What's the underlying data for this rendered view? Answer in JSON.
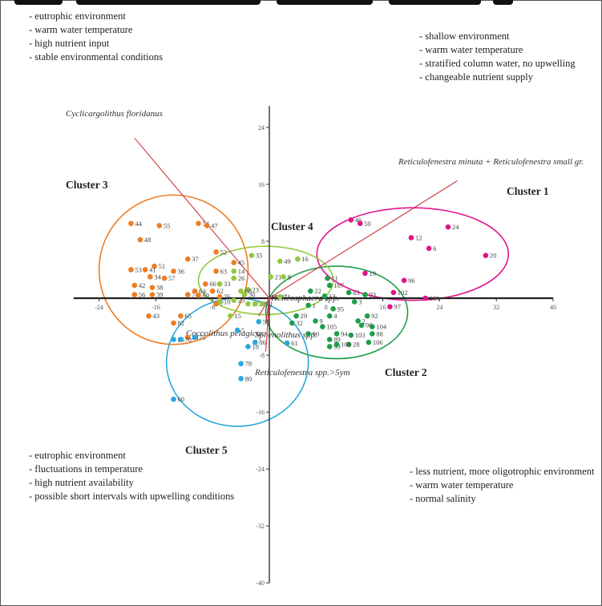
{
  "chart_data": {
    "type": "scatter",
    "title": "",
    "xlabel": "",
    "ylabel": "",
    "xlim": [
      -26,
      40
    ],
    "ylim": [
      -40,
      27
    ],
    "x_ticks": [
      -24,
      -16,
      -8,
      0,
      8,
      16,
      24,
      32,
      40
    ],
    "y_ticks": [
      24,
      16,
      8,
      -8,
      -16,
      -24,
      -32,
      -40
    ],
    "series": [
      {
        "name": "Cluster 1",
        "color": "#e0158a",
        "points": [
          {
            "label": "46",
            "x": 11.5,
            "y": 11.0
          },
          {
            "label": "50",
            "x": 12.8,
            "y": 10.5
          },
          {
            "label": "24",
            "x": 25.2,
            "y": 10.0
          },
          {
            "label": "12",
            "x": 20.0,
            "y": 8.5
          },
          {
            "label": "6",
            "x": 22.5,
            "y": 7.0
          },
          {
            "label": "20",
            "x": 30.5,
            "y": 6.0
          },
          {
            "label": "19",
            "x": 13.5,
            "y": 3.5
          },
          {
            "label": "96",
            "x": 19.0,
            "y": 2.5
          },
          {
            "label": "102",
            "x": 17.5,
            "y": 0.8
          },
          {
            "label": "101",
            "x": 22.0,
            "y": 0.0
          },
          {
            "label": "97",
            "x": 17.0,
            "y": -1.2
          }
        ]
      },
      {
        "name": "Cluster 2",
        "color": "#1f9e4a",
        "points": [
          {
            "label": "11",
            "x": 8.2,
            "y": 2.8
          },
          {
            "label": "107",
            "x": 8.5,
            "y": 1.8
          },
          {
            "label": "22",
            "x": 5.8,
            "y": 1.0
          },
          {
            "label": "83",
            "x": 11.2,
            "y": 0.8
          },
          {
            "label": "93",
            "x": 13.5,
            "y": 0.5
          },
          {
            "label": "13",
            "x": 7.8,
            "y": 0.3
          },
          {
            "label": "3",
            "x": 12.0,
            "y": -0.5
          },
          {
            "label": "1",
            "x": 5.5,
            "y": -1.0
          },
          {
            "label": "95",
            "x": 9.0,
            "y": -1.5
          },
          {
            "label": "29",
            "x": 3.8,
            "y": -2.5
          },
          {
            "label": "4",
            "x": 8.5,
            "y": -2.5
          },
          {
            "label": "92",
            "x": 13.8,
            "y": -2.5
          },
          {
            "label": "32",
            "x": 3.2,
            "y": -3.5
          },
          {
            "label": "9",
            "x": 6.5,
            "y": -3.2
          },
          {
            "label": "2",
            "x": 12.5,
            "y": -3.2
          },
          {
            "label": "98",
            "x": 13.0,
            "y": -3.8
          },
          {
            "label": "105",
            "x": 7.5,
            "y": -4.0
          },
          {
            "label": "104",
            "x": 14.5,
            "y": -4.0
          },
          {
            "label": "90",
            "x": 5.5,
            "y": -5.0
          },
          {
            "label": "94",
            "x": 9.5,
            "y": -5.0
          },
          {
            "label": "103",
            "x": 11.5,
            "y": -5.2
          },
          {
            "label": "88",
            "x": 14.5,
            "y": -5.0
          },
          {
            "label": "89",
            "x": 8.5,
            "y": -5.8
          },
          {
            "label": "28",
            "x": 11.2,
            "y": -6.5
          },
          {
            "label": "106",
            "x": 14.0,
            "y": -6.2
          },
          {
            "label": "99",
            "x": 8.5,
            "y": -6.8
          },
          {
            "label": "100",
            "x": 9.5,
            "y": -6.5
          }
        ]
      },
      {
        "name": "Cluster 3",
        "color": "#ee7d24",
        "points": [
          {
            "label": "44",
            "x": -19.5,
            "y": 10.5
          },
          {
            "label": "55",
            "x": -15.5,
            "y": 10.2
          },
          {
            "label": "54",
            "x": -10.0,
            "y": 10.5
          },
          {
            "label": "47",
            "x": -8.8,
            "y": 10.2
          },
          {
            "label": "48",
            "x": -18.2,
            "y": 8.2
          },
          {
            "label": "52",
            "x": -7.5,
            "y": 6.5
          },
          {
            "label": "37",
            "x": -11.5,
            "y": 5.5
          },
          {
            "label": "51",
            "x": -16.2,
            "y": 4.5
          },
          {
            "label": "45",
            "x": -5.0,
            "y": 5.0
          },
          {
            "label": "53",
            "x": -19.5,
            "y": 4.0
          },
          {
            "label": "41",
            "x": -17.5,
            "y": 4.0
          },
          {
            "label": "36",
            "x": -13.5,
            "y": 3.8
          },
          {
            "label": "63",
            "x": -7.5,
            "y": 3.8
          },
          {
            "label": "34",
            "x": -16.8,
            "y": 3.0
          },
          {
            "label": "57",
            "x": -14.8,
            "y": 2.8
          },
          {
            "label": "42",
            "x": -19.0,
            "y": 1.8
          },
          {
            "label": "38",
            "x": -16.5,
            "y": 1.5
          },
          {
            "label": "66",
            "x": -9.0,
            "y": 2.0
          },
          {
            "label": "56",
            "x": -19.0,
            "y": 0.5
          },
          {
            "label": "39",
            "x": -16.5,
            "y": 0.5
          },
          {
            "label": "74",
            "x": -11.5,
            "y": 0.5
          },
          {
            "label": "64",
            "x": -10.5,
            "y": 1.0
          },
          {
            "label": "69",
            "x": -10.0,
            "y": 0.4
          },
          {
            "label": "62",
            "x": -8.0,
            "y": 1.0
          },
          {
            "label": "76",
            "x": -7.0,
            "y": 0.2
          },
          {
            "label": "7",
            "x": -7.5,
            "y": -0.8
          },
          {
            "label": "65",
            "x": -12.5,
            "y": -2.5
          },
          {
            "label": "43",
            "x": -17.0,
            "y": -2.5
          },
          {
            "label": "82",
            "x": -13.5,
            "y": -3.5
          },
          {
            "label": "84",
            "x": -11.5,
            "y": -5.5
          }
        ]
      },
      {
        "name": "Cluster 4",
        "color": "#93c83e",
        "points": [
          {
            "label": "35",
            "x": -2.5,
            "y": 6.0
          },
          {
            "label": "49",
            "x": 1.5,
            "y": 5.2
          },
          {
            "label": "16",
            "x": 4.0,
            "y": 5.5
          },
          {
            "label": "14",
            "x": -5.0,
            "y": 3.8
          },
          {
            "label": "21",
            "x": 0.2,
            "y": 3.0
          },
          {
            "label": "8",
            "x": 2.0,
            "y": 3.0
          },
          {
            "label": "26",
            "x": -5.0,
            "y": 2.8
          },
          {
            "label": "33",
            "x": -7.0,
            "y": 2.0
          },
          {
            "label": "23",
            "x": -3.0,
            "y": 1.2
          },
          {
            "label": "68",
            "x": -4.0,
            "y": 1.0
          },
          {
            "label": "30",
            "x": -3.5,
            "y": 0.5
          },
          {
            "label": "10",
            "x": -7.0,
            "y": -0.5
          },
          {
            "label": "25",
            "x": -5.0,
            "y": -0.3
          },
          {
            "label": "17",
            "x": -3.0,
            "y": -0.8
          },
          {
            "label": "27",
            "x": -2.0,
            "y": -0.8
          },
          {
            "label": "31",
            "x": -1.0,
            "y": -0.8
          },
          {
            "label": "15",
            "x": -5.5,
            "y": -2.5
          },
          {
            "label": "71",
            "x": 1.5,
            "y": 0.2
          }
        ]
      },
      {
        "name": "Cluster 5",
        "color": "#2aa7de",
        "points": [
          {
            "label": "58",
            "x": -1.5,
            "y": -3.3
          },
          {
            "label": "5",
            "x": -4.5,
            "y": -4.5
          },
          {
            "label": "85",
            "x": -13.5,
            "y": -5.8
          },
          {
            "label": "70",
            "x": -12.5,
            "y": -5.8
          },
          {
            "label": "75",
            "x": -10.5,
            "y": -5.5
          },
          {
            "label": "86",
            "x": -2.0,
            "y": -6.2
          },
          {
            "label": "18",
            "x": -3.0,
            "y": -6.8
          },
          {
            "label": "61",
            "x": 2.5,
            "y": -6.3
          },
          {
            "label": "78",
            "x": -4.0,
            "y": -9.2
          },
          {
            "label": "80",
            "x": -4.0,
            "y": -11.3
          },
          {
            "label": "60",
            "x": -13.5,
            "y": -14.2
          }
        ]
      }
    ],
    "vectors": [
      {
        "label": "Cyclicargolithus floridanus",
        "x": -19.0,
        "y": 22.5
      },
      {
        "label": "Reticulofenestra minuta + Reticulofenestra small gr.",
        "x": 26.5,
        "y": 16.5
      },
      {
        "label": "Helicosphaera spp.",
        "x": 1.0,
        "y": 0.3
      },
      {
        "label": "Coccolithus pelagicus",
        "x": -1.5,
        "y": -2.5
      },
      {
        "label": "Sphenolithus spp.",
        "x": -0.5,
        "y": -3.5
      },
      {
        "label": "Reticulofenestra spp.>5ym",
        "x": -0.5,
        "y": -7.5
      }
    ],
    "clusters": [
      {
        "name": "Cluster 1",
        "color": "#e0158a",
        "cx": 20.2,
        "cy": 6.2,
        "rx": 13.5,
        "ry": 6.5
      },
      {
        "name": "Cluster 2",
        "color": "#1f9e4a",
        "cx": 9.5,
        "cy": -2.0,
        "rx": 10.0,
        "ry": 6.5
      },
      {
        "name": "Cluster 3",
        "color": "#ee7d24",
        "cx": -13.5,
        "cy": 4.0,
        "rx": 10.5,
        "ry": 10.5
      },
      {
        "name": "Cluster 4",
        "color": "#93c83e",
        "cx": -0.5,
        "cy": 2.5,
        "rx": 9.5,
        "ry": 4.8
      },
      {
        "name": "Cluster 5",
        "color": "#2aa7de",
        "cx": -4.5,
        "cy": -9.0,
        "rx": 10.0,
        "ry": 9.0
      }
    ],
    "notes": {
      "top_left": [
        "- eutrophic environment",
        "- warm water temperature",
        "- high nutrient input",
        "- stable environmental conditions"
      ],
      "top_right": [
        "- shallow environment",
        "- warm water temperature",
        "- stratified column water, no upwelling",
        "- changeable nutrient supply"
      ],
      "bottom_left": [
        "- eutrophic environment",
        "- fluctuations in temperature",
        "- high nutrient availability",
        "- possible short intervals with upwelling conditions"
      ],
      "bottom_right": [
        "- less nutrient, more oligotrophic environment",
        "- warm water temperature",
        "- normal salinity"
      ]
    }
  }
}
